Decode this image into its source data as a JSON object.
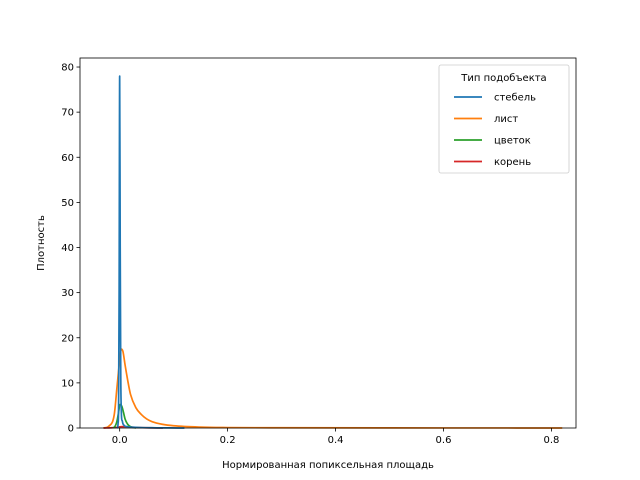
{
  "chart_data": {
    "type": "line",
    "title": "",
    "xlabel": "Нормированная попиксельная площадь",
    "ylabel": "Плотность",
    "xlim": [
      -0.0735,
      0.8455
    ],
    "ylim": [
      0,
      82
    ],
    "xticks": [
      0.0,
      0.2,
      0.4,
      0.6,
      0.8
    ],
    "xtick_labels": [
      "0.0",
      "0.2",
      "0.4",
      "0.6",
      "0.8"
    ],
    "yticks": [
      0,
      10,
      20,
      30,
      40,
      50,
      60,
      70,
      80
    ],
    "ytick_labels": [
      "0",
      "10",
      "20",
      "30",
      "40",
      "50",
      "60",
      "70",
      "80"
    ],
    "grid": false,
    "legend": {
      "title": "Тип подобъекта",
      "placement": "top-right",
      "entries": [
        "стебель",
        "лист",
        "цветок",
        "корень"
      ]
    },
    "series": [
      {
        "name": "стебель",
        "color": "#1f77b4",
        "x": [
          -0.005,
          -0.003,
          -0.002,
          -0.001,
          0.0,
          0.001,
          0.002,
          0.003,
          0.005,
          0.008,
          0.015,
          0.03,
          0.06,
          0.09,
          0.12
        ],
        "y": [
          0,
          1,
          5,
          30,
          78,
          40,
          12,
          4,
          1.5,
          0.6,
          0.3,
          0.15,
          0.05,
          0.02,
          0
        ]
      },
      {
        "name": "лист",
        "color": "#ff7f0e",
        "x": [
          -0.03,
          -0.02,
          -0.01,
          -0.005,
          0.0,
          0.003,
          0.006,
          0.01,
          0.015,
          0.02,
          0.03,
          0.04,
          0.05,
          0.06,
          0.08,
          0.1,
          0.15,
          0.2,
          0.3,
          0.5,
          0.7,
          0.82
        ],
        "y": [
          0,
          0.4,
          3,
          9,
          15,
          17.5,
          17,
          14,
          10.5,
          7.5,
          4.5,
          3,
          2,
          1.4,
          0.8,
          0.5,
          0.2,
          0.1,
          0.05,
          0.02,
          0.01,
          0
        ]
      },
      {
        "name": "цветок",
        "color": "#2ca02c",
        "x": [
          -0.012,
          -0.008,
          -0.005,
          -0.002,
          0.0,
          0.002,
          0.004,
          0.007,
          0.01,
          0.015,
          0.02,
          0.03
        ],
        "y": [
          0,
          0.5,
          1.5,
          3.5,
          5,
          5.2,
          4.8,
          3.5,
          2,
          0.8,
          0.3,
          0
        ]
      },
      {
        "name": "корень",
        "color": "#d62728",
        "x": [
          -0.03,
          -0.015,
          -0.005,
          0.0,
          0.005,
          0.015,
          0.03,
          0.05,
          0.08
        ],
        "y": [
          0,
          0.05,
          0.15,
          0.25,
          0.3,
          0.25,
          0.12,
          0.05,
          0
        ]
      }
    ]
  }
}
